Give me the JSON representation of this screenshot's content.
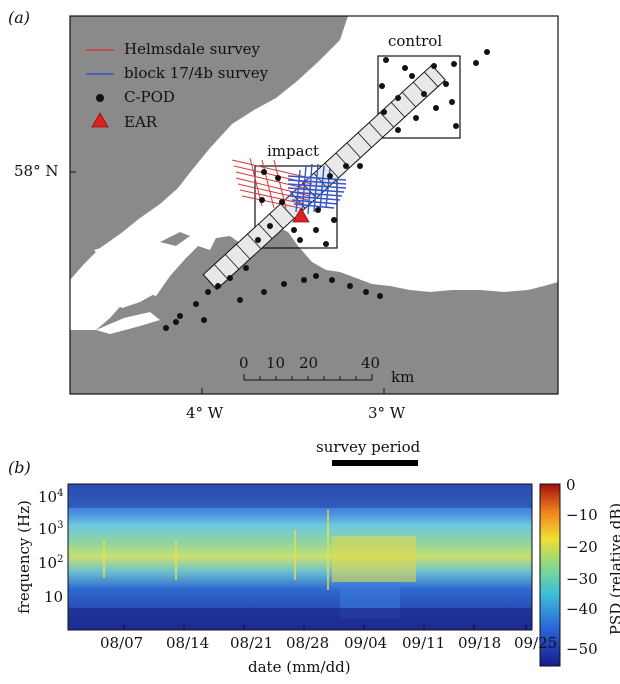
{
  "panel_a": {
    "label": "(a)",
    "legend": [
      {
        "text": "Helmsdale survey",
        "color": "#d23a3a",
        "marker": "line"
      },
      {
        "text": "block 17/4b survey",
        "color": "#3355cc",
        "marker": "line"
      },
      {
        "text": "C-POD",
        "color": "#111111",
        "marker": "dot"
      },
      {
        "text": "EAR",
        "color": "#e02020",
        "marker": "triangle"
      }
    ],
    "boxes": {
      "impact": "impact",
      "control": "control"
    },
    "lat_label": "58° N",
    "lon_labels": [
      "4° W",
      "3° W"
    ],
    "scale": {
      "ticks": [
        "0",
        "10",
        "20",
        "40"
      ],
      "unit": "km"
    },
    "colors": {
      "land": "#8a8a8a",
      "sea": "#ffffff",
      "survey_blue": "#3355cc",
      "survey_red": "#d23a3a"
    }
  },
  "panel_b": {
    "label": "(b)",
    "survey_period": "survey period",
    "ylabel": "frequency (Hz)",
    "xlabel": "date (mm/dd)",
    "colorbar_label": "PSD (relative dB)",
    "y_ticks": [
      {
        "base": "10",
        "exp": "4"
      },
      {
        "base": "10",
        "exp": "3"
      },
      {
        "base": "10",
        "exp": "2"
      },
      {
        "base": "10",
        "exp": ""
      }
    ],
    "x_ticks": [
      "08/07",
      "08/14",
      "08/21",
      "08/28",
      "09/04",
      "09/11",
      "09/18",
      "09/25"
    ],
    "colorbar_ticks": [
      "0",
      "−10",
      "−20",
      "−30",
      "−40",
      "−50"
    ]
  },
  "chart_data": {
    "type": "heatmap",
    "title": "",
    "xlabel": "date (mm/dd)",
    "ylabel": "frequency (Hz)",
    "colorbar": {
      "label": "PSD (relative dB)",
      "range": [
        -50,
        0
      ]
    },
    "x_ticks": [
      "08/07",
      "08/14",
      "08/21",
      "08/28",
      "09/04",
      "09/11",
      "09/18",
      "09/25"
    ],
    "y_ticks": [
      "10",
      "10^2",
      "10^3",
      "10^4"
    ],
    "y_scale": "log",
    "annotation": "survey period"
  }
}
